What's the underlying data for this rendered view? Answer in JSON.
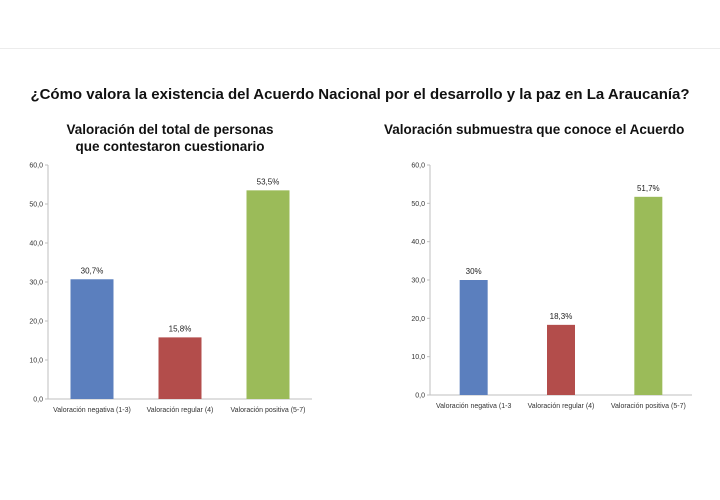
{
  "title": "¿Cómo valora la existencia del Acuerdo Nacional por el desarrollo y la paz en La Araucanía?",
  "chart_data": [
    {
      "type": "bar",
      "title_lines": [
        "Valoración del total de personas",
        "que contestaron cuestionario"
      ],
      "categories": [
        "Valoración negativa (1-3)",
        "Valoración regular (4)",
        "Valoración positiva (5-7)"
      ],
      "values": [
        30.7,
        15.8,
        53.5
      ],
      "data_labels": [
        "30,7%",
        "15,8%",
        "53,5%"
      ],
      "colors": [
        "#5b7fbe",
        "#b34d4b",
        "#9bbb59"
      ],
      "ylim": [
        0,
        60
      ],
      "yticks": [
        "0,0",
        "10,0",
        "20,0",
        "30,0",
        "40,0",
        "50,0",
        "60,0"
      ],
      "grid": false
    },
    {
      "type": "bar",
      "title_lines": [
        "Valoración submuestra que conoce el Acuerdo"
      ],
      "categories": [
        "Valoración negativa (1-3",
        "Valoración regular (4)",
        "Valoración positiva (5-7)"
      ],
      "values": [
        30,
        18.3,
        51.7
      ],
      "data_labels": [
        "30%",
        "18,3%",
        "51,7%"
      ],
      "colors": [
        "#5b7fbe",
        "#b34d4b",
        "#9bbb59"
      ],
      "ylim": [
        0,
        60
      ],
      "yticks": [
        "0,0",
        "10,0",
        "20,0",
        "30,0",
        "40,0",
        "50,0",
        "60,0"
      ],
      "grid": false
    }
  ]
}
